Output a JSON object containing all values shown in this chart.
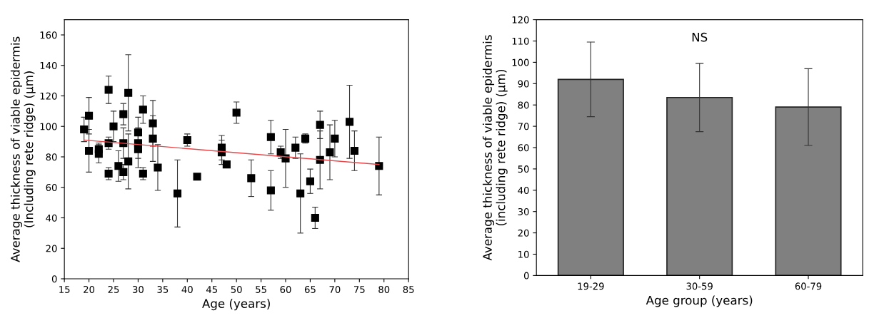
{
  "chart_data": [
    {
      "type": "scatter",
      "xlabel": "Age (years)",
      "ylabel": "Average thickness of viable epidermis\n(Including rete ridge) (µm)",
      "xlim": [
        15,
        85
      ],
      "ylim": [
        0,
        170
      ],
      "xticks": [
        15,
        20,
        25,
        30,
        35,
        40,
        45,
        50,
        55,
        60,
        65,
        70,
        75,
        80,
        85
      ],
      "yticks": [
        0,
        20,
        40,
        60,
        80,
        100,
        120,
        140,
        160
      ],
      "grid": false,
      "series": [
        {
          "type": "scatter",
          "marker": "square",
          "color": "#000000",
          "x": [
            19,
            20,
            20,
            22,
            22,
            24,
            24,
            24,
            25,
            26,
            27,
            27,
            27,
            28,
            28,
            30,
            30,
            30,
            31,
            31,
            33,
            33,
            34,
            38,
            40,
            42,
            47,
            47,
            48,
            50,
            53,
            57,
            57,
            59,
            60,
            62,
            63,
            64,
            65,
            66,
            67,
            67,
            69,
            70,
            73,
            74,
            79
          ],
          "values": [
            98,
            107,
            84,
            85,
            82,
            124,
            89,
            69,
            100,
            74,
            108,
            89,
            70,
            122,
            77,
            96,
            89,
            85,
            111,
            69,
            102,
            92,
            73,
            56,
            91,
            67,
            86,
            83,
            75,
            109,
            66,
            93,
            58,
            83,
            79,
            86,
            56,
            92,
            64,
            40,
            101,
            78,
            83,
            92,
            103,
            84,
            74
          ],
          "errors": [
            8,
            12,
            14,
            4,
            6,
            9,
            4,
            4,
            10,
            10,
            7,
            10,
            5,
            25,
            18,
            10,
            10,
            12,
            9,
            4,
            15,
            15,
            15,
            22,
            4,
            2,
            8,
            8,
            2,
            7,
            12,
            11,
            13,
            4,
            19,
            7,
            26,
            3,
            8,
            7,
            9,
            19,
            18,
            12,
            24,
            13,
            19
          ]
        },
        {
          "type": "line",
          "color": "#e8474a",
          "x": [
            19,
            79
          ],
          "values": [
            91,
            75
          ]
        }
      ]
    },
    {
      "type": "bar",
      "categories": [
        "19-29",
        "30-59",
        "60-79"
      ],
      "values": [
        92,
        83.5,
        79
      ],
      "errors": [
        17.5,
        16,
        18
      ],
      "color": "#808080",
      "xlabel": "Age group (years)",
      "ylabel": "Average thickness of viable epidermis\n(including rete ridge) (µm)",
      "ylim": [
        0,
        120
      ],
      "yticks": [
        0,
        10,
        20,
        30,
        40,
        50,
        60,
        70,
        80,
        90,
        100,
        110,
        120
      ],
      "grid": false,
      "annotations": [
        "NS"
      ]
    }
  ]
}
